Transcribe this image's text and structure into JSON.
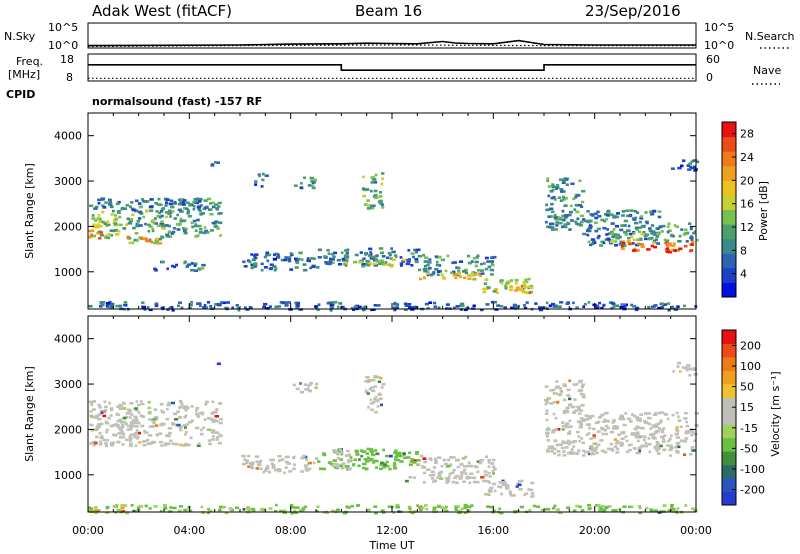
{
  "header": {
    "station": "Adak West (fitACF)",
    "beam": "Beam 16",
    "date": "23/Sep/2016"
  },
  "params": {
    "nsky_label": "N.Sky",
    "nsearch_label": "N.Search",
    "freq_label_1": "Freq.",
    "freq_label_2": "[MHz]",
    "nave_label": "Nave",
    "cpid_label": "CPID",
    "cpid_text": "normalsound (fast) -157 RF",
    "noise_left_ticks": [
      "10^5",
      "10^0"
    ],
    "noise_right_ticks": [
      "10^5",
      "10^0"
    ],
    "freq_ticks": [
      "18",
      "8"
    ],
    "nave_ticks": [
      "60",
      "0"
    ]
  },
  "chart_data": [
    {
      "type": "line",
      "panel": "noise",
      "scale": "log",
      "ylim": [
        1,
        100000
      ],
      "series": [
        {
          "name": "N.Sky",
          "style": "solid",
          "x": [
            0,
            6,
            8,
            10,
            11,
            12,
            13,
            14,
            14.5,
            15,
            16,
            17,
            18,
            20,
            24
          ],
          "y": [
            3,
            4,
            6,
            7,
            9,
            8,
            7,
            20,
            10,
            8,
            7,
            30,
            5,
            4,
            4
          ]
        },
        {
          "name": "N.Search",
          "style": "dotted",
          "x": [
            0,
            6,
            12,
            18,
            24
          ],
          "y": [
            2,
            3,
            4,
            3,
            3
          ]
        }
      ]
    },
    {
      "type": "line",
      "panel": "frequency",
      "series": [
        {
          "name": "Freq.",
          "units": "MHz",
          "style": "solid",
          "x": [
            0,
            10,
            10,
            18,
            18,
            24
          ],
          "y": [
            14,
            14,
            12,
            12,
            14,
            14
          ]
        },
        {
          "name": "Nave",
          "style": "dotted",
          "x": [
            0,
            24
          ],
          "y": [
            9,
            9
          ]
        }
      ]
    },
    {
      "type": "heatmap",
      "panel": "power",
      "xlabel": "Time UT",
      "ylabel": "Slant Range [km]",
      "xlim": [
        0,
        24
      ],
      "ylim": [
        180,
        4500
      ],
      "x_ticks": [
        "00:00",
        "04:00",
        "08:00",
        "12:00",
        "16:00",
        "20:00",
        "00:00"
      ],
      "y_ticks": [
        1000,
        2000,
        3000,
        4000
      ],
      "colorbar_label": "Power [dB]",
      "colorbar_ticks": [
        4,
        8,
        12,
        16,
        20,
        24,
        28
      ],
      "clim": [
        0,
        30
      ],
      "colors": [
        "#0010e0",
        "#1b3fc8",
        "#2e62b4",
        "#3a8a8a",
        "#4aa06a",
        "#78c050",
        "#c8d030",
        "#f0c020",
        "#f0a020",
        "#ee7a1a",
        "#ec4a18",
        "#e81010"
      ],
      "regions": [
        {
          "t0": 0.0,
          "t1": 1.5,
          "r0": 1750,
          "r1": 2350,
          "v": 14
        },
        {
          "t0": 1.5,
          "t1": 3.2,
          "r0": 1650,
          "r1": 2400,
          "v": 11
        },
        {
          "t0": 3.2,
          "t1": 5.2,
          "r0": 1800,
          "r1": 2650,
          "v": 10
        },
        {
          "t0": 0.0,
          "t1": 0.6,
          "r0": 1750,
          "r1": 1950,
          "v": 24
        },
        {
          "t0": 1.5,
          "t1": 2.8,
          "r0": 1650,
          "r1": 1800,
          "v": 20
        },
        {
          "t0": 0.0,
          "t1": 4.5,
          "r0": 2350,
          "r1": 2650,
          "v": 8
        },
        {
          "t0": 2.5,
          "t1": 4.5,
          "r0": 1050,
          "r1": 1250,
          "v": 8
        },
        {
          "t0": 4.8,
          "t1": 5.2,
          "r0": 3300,
          "r1": 3500,
          "v": 6
        },
        {
          "t0": 6.5,
          "t1": 7.0,
          "r0": 2900,
          "r1": 3200,
          "v": 6
        },
        {
          "t0": 8.0,
          "t1": 9.0,
          "r0": 2850,
          "r1": 3100,
          "v": 9
        },
        {
          "t0": 6.0,
          "t1": 9.0,
          "r0": 1050,
          "r1": 1450,
          "v": 7
        },
        {
          "t0": 9.0,
          "t1": 13.0,
          "r0": 1150,
          "r1": 1550,
          "v": 8
        },
        {
          "t0": 10.0,
          "t1": 12.5,
          "r0": 1150,
          "r1": 1300,
          "v": 15
        },
        {
          "t0": 13.0,
          "t1": 16.0,
          "r0": 950,
          "r1": 1400,
          "v": 9
        },
        {
          "t0": 13.0,
          "t1": 15.5,
          "r0": 850,
          "r1": 1000,
          "v": 17
        },
        {
          "t0": 15.5,
          "t1": 17.5,
          "r0": 550,
          "r1": 900,
          "v": 14
        },
        {
          "t0": 16.6,
          "t1": 17.5,
          "r0": 550,
          "r1": 750,
          "v": 21
        },
        {
          "t0": 10.8,
          "t1": 11.6,
          "r0": 2400,
          "r1": 3200,
          "v": 11
        },
        {
          "t0": 18.0,
          "t1": 19.5,
          "r0": 1950,
          "r1": 3100,
          "v": 10
        },
        {
          "t0": 19.5,
          "t1": 22.5,
          "r0": 1600,
          "r1": 2400,
          "v": 8
        },
        {
          "t0": 20.5,
          "t1": 22.5,
          "r0": 1650,
          "r1": 1900,
          "v": 14
        },
        {
          "t0": 21.0,
          "t1": 24.0,
          "r0": 1450,
          "r1": 1700,
          "v": 25
        },
        {
          "t0": 22.5,
          "t1": 24.0,
          "r0": 1700,
          "r1": 2100,
          "v": 10
        },
        {
          "t0": 23.0,
          "t1": 24.0,
          "r0": 3200,
          "r1": 3500,
          "v": 7
        },
        {
          "t0": 0.0,
          "t1": 24.0,
          "r0": 180,
          "r1": 360,
          "v": 6
        }
      ]
    },
    {
      "type": "heatmap",
      "panel": "velocity",
      "xlabel": "Time UT",
      "ylabel": "Slant Range [km]",
      "xlim": [
        0,
        24
      ],
      "ylim": [
        180,
        4500
      ],
      "x_ticks": [
        "00:00",
        "04:00",
        "08:00",
        "12:00",
        "16:00",
        "20:00",
        "00:00"
      ],
      "y_ticks": [
        1000,
        2000,
        3000,
        4000
      ],
      "colorbar_label": "Velocity [m s⁻¹]",
      "colorbar_ticks": [
        "200",
        "100",
        "50",
        "15",
        "-15",
        "-50",
        "-100",
        "-200"
      ],
      "clim": [
        -250,
        250
      ],
      "colors": [
        "#2a3ad0",
        "#2a55c0",
        "#2e6a6a",
        "#3f8f3f",
        "#6ac040",
        "#a0d060",
        "#c0c0b8",
        "#c0c0b8",
        "#f0c030",
        "#f0a020",
        "#ee7a18",
        "#ee4a18",
        "#e81010"
      ],
      "regions": [
        {
          "t0": 0.0,
          "t1": 5.2,
          "r0": 1650,
          "r1": 2650,
          "v": 0
        },
        {
          "t0": 6.0,
          "t1": 9.0,
          "r0": 1050,
          "r1": 1450,
          "v": 0
        },
        {
          "t0": 9.0,
          "t1": 13.0,
          "r0": 1150,
          "r1": 1600,
          "v": -80
        },
        {
          "t0": 9.6,
          "t1": 10.4,
          "r0": 1150,
          "r1": 1600,
          "v": 40
        },
        {
          "t0": 13.0,
          "t1": 16.0,
          "r0": 950,
          "r1": 1450,
          "v": 30
        },
        {
          "t0": 12.5,
          "t1": 15.5,
          "r0": 850,
          "r1": 1000,
          "v": 0
        },
        {
          "t0": 15.5,
          "t1": 17.5,
          "r0": 550,
          "r1": 900,
          "v": 0
        },
        {
          "t0": 10.8,
          "t1": 11.6,
          "r0": 2400,
          "r1": 3200,
          "v": 0
        },
        {
          "t0": 8.0,
          "t1": 9.0,
          "r0": 2850,
          "r1": 3100,
          "v": 0
        },
        {
          "t0": 18.0,
          "t1": 24.0,
          "r0": 1450,
          "r1": 2400,
          "v": 0
        },
        {
          "t0": 18.0,
          "t1": 19.5,
          "r0": 2400,
          "r1": 3100,
          "v": 0
        },
        {
          "t0": 23.0,
          "t1": 24.0,
          "r0": 3200,
          "r1": 3500,
          "v": 0
        },
        {
          "t0": 4.9,
          "t1": 5.2,
          "r0": 3450,
          "r1": 3550,
          "v": -220
        },
        {
          "t0": 0.0,
          "t1": 24.0,
          "r0": 180,
          "r1": 360,
          "v": -60
        }
      ]
    }
  ]
}
